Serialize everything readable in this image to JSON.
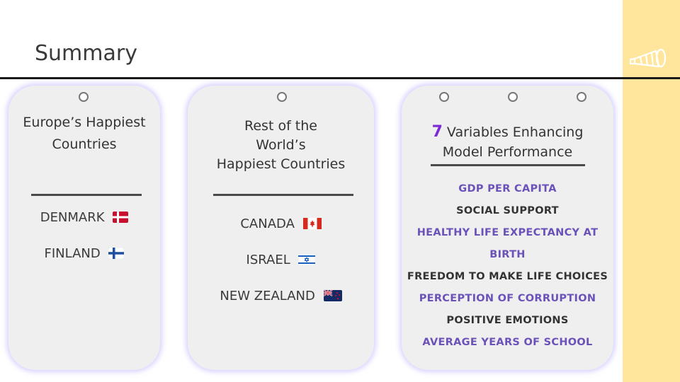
{
  "title": "Summary",
  "logo_icon": "megaphone-icon",
  "colors": {
    "accent_band": "#ffe69c",
    "purple_text": "#6b52b8",
    "dark_text": "#333333",
    "number_accent": "#7a2bd6"
  },
  "cards": {
    "europe": {
      "heading_line1": "Europe’s Happiest",
      "heading_line2": "Countries",
      "countries": [
        {
          "name": "DENMARK",
          "flag": "denmark-flag-icon"
        },
        {
          "name": "FINLAND",
          "flag": "finland-flag-icon"
        }
      ]
    },
    "rest": {
      "heading_line1": "Rest of the",
      "heading_line2": "World’s",
      "heading_line3": "Happiest Countries",
      "countries": [
        {
          "name": "CANADA",
          "flag": "canada-flag-icon"
        },
        {
          "name": "ISRAEL",
          "flag": "israel-flag-icon"
        },
        {
          "name": "NEW ZEALAND",
          "flag": "new-zealand-flag-icon"
        }
      ]
    },
    "variables": {
      "number": "7",
      "heading_line1_rest": " Variables Enhancing",
      "heading_line2": "Model Performance",
      "items": [
        "GDP PER CAPITA",
        "SOCIAL SUPPORT",
        "HEALTHY LIFE EXPECTANCY AT",
        "BIRTH",
        "FREEDOM TO MAKE LIFE CHOICES",
        "PERCEPTION OF CORRUPTION",
        "POSITIVE EMOTIONS",
        "AVERAGE YEARS OF SCHOOL"
      ]
    }
  }
}
